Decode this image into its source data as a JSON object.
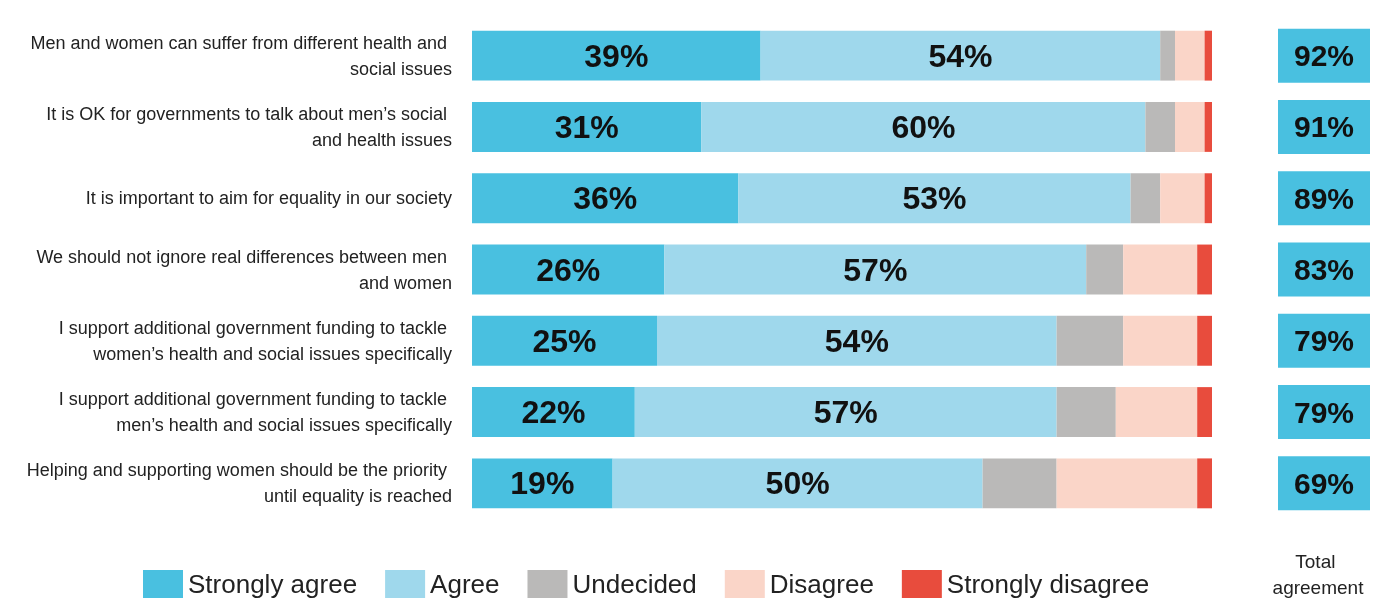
{
  "chart_data": {
    "type": "bar",
    "orientation": "horizontal",
    "stacked": true,
    "xlim": [
      0,
      100
    ],
    "tick_labels": "y",
    "legend": "bottom",
    "grid": false,
    "categories": [
      "Men and women can suffer from different health and social issues",
      "It is OK for governments to talk about men’s social and health issues",
      "It is important to aim for equality in our society",
      "We should not ignore real differences between men and women",
      "I support additional government funding to tackle women’s health and social issues specifically",
      "I support additional government funding to tackle men’s health and social issues specifically",
      "Helping and supporting women should be the priority until equality is reached"
    ],
    "series": [
      {
        "name": "Strongly agree",
        "color": "#49c0e0",
        "values": [
          39,
          31,
          36,
          26,
          25,
          22,
          19
        ],
        "value_labels": [
          "39%",
          "31%",
          "36%",
          "26%",
          "25%",
          "22%",
          "19%"
        ]
      },
      {
        "name": "Agree",
        "color": "#9fd8ec",
        "values": [
          54,
          60,
          53,
          57,
          54,
          57,
          50
        ],
        "value_labels": [
          "54%",
          "60%",
          "53%",
          "57%",
          "54%",
          "57%",
          "50%"
        ]
      },
      {
        "name": "Undecided",
        "color": "#bab9b8",
        "values": [
          2,
          4,
          4,
          5,
          9,
          8,
          10
        ]
      },
      {
        "name": "Disagree",
        "color": "#fad5c8",
        "values": [
          4,
          4,
          6,
          10,
          10,
          11,
          19
        ]
      },
      {
        "name": "Strongly disagree",
        "color": "#e84c3d",
        "values": [
          1,
          1,
          1,
          2,
          2,
          2,
          2
        ]
      }
    ],
    "annotations": [
      "92%",
      "91%",
      "89%",
      "83%",
      "79%",
      "79%",
      "69%",
      "Total agreement"
    ]
  }
}
